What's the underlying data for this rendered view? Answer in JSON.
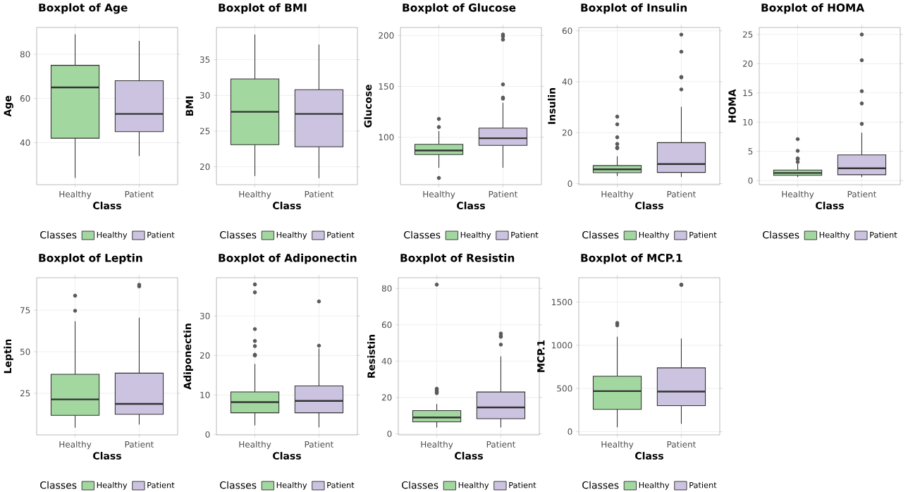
{
  "chart_data": [
    {
      "type": "box",
      "title": "Boxplot of Age",
      "xlabel": "Class",
      "ylabel": "Age",
      "legend_title": "Classes",
      "legend": "bottom",
      "grid": true,
      "categories": [
        "Healthy",
        "Patient"
      ],
      "ylim": [
        21,
        92.1
      ],
      "yticks": [
        40,
        60,
        80
      ],
      "series": [
        {
          "name": "Healthy",
          "color": "#a3d7a0",
          "boxes": [
            {
              "low": 24,
              "q1": 42,
              "median": 65,
              "q3": 75,
              "high": 89
            },
            null
          ]
        },
        {
          "name": "Patient",
          "color": "#cbc3df",
          "boxes": [
            null,
            {
              "low": 34,
              "q1": 45,
              "median": 53,
              "q3": 68,
              "high": 86
            }
          ]
        }
      ]
    },
    {
      "type": "box",
      "title": "Boxplot of BMI",
      "xlabel": "Class",
      "ylabel": "BMI",
      "legend_title": "Classes",
      "legend": "bottom",
      "grid": true,
      "categories": [
        "Healthy",
        "Patient"
      ],
      "ylim": [
        17.5,
        39.5
      ],
      "yticks": [
        20,
        25,
        30,
        35
      ],
      "series": [
        {
          "name": "Healthy",
          "color": "#a3d7a0",
          "boxes": [
            {
              "low": 18.7,
              "q1": 23.1,
              "median": 27.7,
              "q3": 32.3,
              "high": 38.5
            },
            null
          ]
        },
        {
          "name": "Patient",
          "color": "#cbc3df",
          "boxes": [
            null,
            {
              "low": 18.4,
              "q1": 22.8,
              "median": 27.4,
              "q3": 30.8,
              "high": 37.1
            }
          ]
        }
      ]
    },
    {
      "type": "box",
      "title": "Boxplot of Glucose",
      "xlabel": "Class",
      "ylabel": "Glucose",
      "legend_title": "Classes",
      "legend": "bottom",
      "grid": true,
      "categories": [
        "Healthy",
        "Patient"
      ],
      "ylim": [
        53.4,
        207.9
      ],
      "yticks": [
        100,
        150,
        200
      ],
      "series": [
        {
          "name": "Healthy",
          "color": "#a3d7a0",
          "boxes": [
            {
              "low": 70,
              "q1": 83,
              "median": 87,
              "q3": 93,
              "high": 106,
              "outliers": [
                118,
                110,
                60
              ]
            },
            null
          ]
        },
        {
          "name": "Patient",
          "color": "#cbc3df",
          "boxes": [
            null,
            {
              "low": 70,
              "q1": 92,
              "median": 99,
              "q3": 109,
              "high": 134,
              "outliers": [
                201,
                199,
                196,
                152,
                139,
                138
              ]
            }
          ]
        }
      ]
    },
    {
      "type": "box",
      "title": "Boxplot of Insulin",
      "xlabel": "Class",
      "ylabel": "Insulin",
      "legend_title": "Classes",
      "legend": "bottom",
      "grid": true,
      "categories": [
        "Healthy",
        "Patient"
      ],
      "ylim": [
        -0.4,
        61.3
      ],
      "yticks": [
        0,
        20,
        40,
        60
      ],
      "series": [
        {
          "name": "Healthy",
          "color": "#a3d7a0",
          "boxes": [
            {
              "low": 3.0,
              "q1": 4.3,
              "median": 5.6,
              "q3": 7.1,
              "high": 10.7,
              "outliers": [
                26.3,
                23.3,
                18.2,
                15.6,
                14.2,
                13.9
              ]
            },
            null
          ]
        },
        {
          "name": "Patient",
          "color": "#cbc3df",
          "boxes": [
            null,
            {
              "low": 2.6,
              "q1": 4.4,
              "median": 7.7,
              "q3": 16.1,
              "high": 30.2,
              "outliers": [
                58.5,
                51.8,
                41.9,
                41.7,
                37.0
              ]
            }
          ]
        }
      ]
    },
    {
      "type": "box",
      "title": "Boxplot of HOMA",
      "xlabel": "Class",
      "ylabel": "HOMA",
      "legend_title": "Classes",
      "legend": "bottom",
      "grid": true,
      "categories": [
        "Healthy",
        "Patient"
      ],
      "ylim": [
        -0.7,
        26.2
      ],
      "yticks": [
        0,
        5,
        10,
        15,
        20,
        25
      ],
      "series": [
        {
          "name": "Healthy",
          "color": "#a3d7a0",
          "boxes": [
            {
              "low": 0.6,
              "q1": 0.9,
              "median": 1.3,
              "q3": 1.8,
              "high": 2.9,
              "outliers": [
                7.1,
                5.1,
                3.8,
                3.7,
                3.2
              ]
            },
            null
          ]
        },
        {
          "name": "Patient",
          "color": "#cbc3df",
          "boxes": [
            null,
            {
              "low": 0.6,
              "q1": 1.0,
              "median": 2.1,
              "q3": 4.4,
              "high": 8.2,
              "outliers": [
                25.0,
                20.6,
                15.3,
                13.2,
                9.7
              ]
            }
          ]
        }
      ]
    },
    {
      "type": "box",
      "title": "Boxplot of Leptin",
      "xlabel": "Class",
      "ylabel": "Leptin",
      "legend_title": "Classes",
      "legend": "bottom",
      "grid": true,
      "categories": [
        "Healthy",
        "Patient"
      ],
      "ylim": [
        -0.1,
        94.6
      ],
      "yticks": [
        25,
        50,
        75
      ],
      "series": [
        {
          "name": "Healthy",
          "color": "#a3d7a0",
          "boxes": [
            {
              "low": 4.2,
              "q1": 11.7,
              "median": 21.3,
              "q3": 36.4,
              "high": 68.4,
              "outliers": [
                83.8,
                74.7
              ]
            },
            null
          ]
        },
        {
          "name": "Patient",
          "color": "#cbc3df",
          "boxes": [
            null,
            {
              "low": 6.2,
              "q1": 12.3,
              "median": 18.6,
              "q3": 37.1,
              "high": 70.5,
              "outliers": [
                90.4,
                89.4
              ]
            }
          ]
        }
      ]
    },
    {
      "type": "box",
      "title": "Boxplot of Adiponectin",
      "xlabel": "Class",
      "ylabel": "Adiponectin",
      "legend_title": "Classes",
      "legend": "bottom",
      "grid": true,
      "categories": [
        "Healthy",
        "Patient"
      ],
      "ylim": [
        -0.1,
        39.7
      ],
      "yticks": [
        0,
        10,
        20,
        30
      ],
      "series": [
        {
          "name": "Healthy",
          "color": "#a3d7a0",
          "boxes": [
            {
              "low": 2.3,
              "q1": 5.5,
              "median": 8.2,
              "q3": 10.8,
              "high": 17.9,
              "outliers": [
                38.0,
                36.0,
                26.7,
                23.7,
                22.4,
                20.2,
                20.0
              ]
            },
            null
          ]
        },
        {
          "name": "Patient",
          "color": "#cbc3df",
          "boxes": [
            null,
            {
              "low": 1.8,
              "q1": 5.5,
              "median": 8.5,
              "q3": 12.3,
              "high": 21.8,
              "outliers": [
                33.7,
                22.5
              ]
            }
          ]
        }
      ]
    },
    {
      "type": "box",
      "title": "Boxplot of Resistin",
      "xlabel": "Class",
      "ylabel": "Resistin",
      "legend_title": "Classes",
      "legend": "bottom",
      "grid": true,
      "categories": [
        "Healthy",
        "Patient"
      ],
      "ylim": [
        -0.6,
        85.9
      ],
      "yticks": [
        0,
        20,
        40,
        60,
        80
      ],
      "series": [
        {
          "name": "Healthy",
          "color": "#a3d7a0",
          "boxes": [
            {
              "low": 3.5,
              "q1": 6.6,
              "median": 9.0,
              "q3": 12.8,
              "high": 16.4,
              "outliers": [
                82.1,
                24.8,
                23.9,
                23.1,
                22.4
              ]
            },
            null
          ]
        },
        {
          "name": "Patient",
          "color": "#cbc3df",
          "boxes": [
            null,
            {
              "low": 3.5,
              "q1": 8.3,
              "median": 14.5,
              "q3": 23.0,
              "high": 42.6,
              "outliers": [
                55.2,
                53.8,
                53.4,
                49.1
              ]
            }
          ]
        }
      ]
    },
    {
      "type": "box",
      "title": "Boxplot of MCP.1",
      "xlabel": "Class",
      "ylabel": "MCP.1",
      "legend_title": "Classes",
      "legend": "bottom",
      "grid": true,
      "categories": [
        "Healthy",
        "Patient"
      ],
      "ylim": [
        -38,
        1782
      ],
      "yticks": [
        0,
        500,
        1000,
        1500
      ],
      "series": [
        {
          "name": "Healthy",
          "color": "#a3d7a0",
          "boxes": [
            {
              "low": 49,
              "q1": 258,
              "median": 469,
              "q3": 641,
              "high": 1098,
              "outliers": [
                1258,
                1231
              ]
            },
            null
          ]
        },
        {
          "name": "Patient",
          "color": "#cbc3df",
          "boxes": [
            null,
            {
              "low": 90,
              "q1": 301,
              "median": 464,
              "q3": 738,
              "high": 1077,
              "outliers": [
                1700,
                1700
              ]
            }
          ]
        }
      ]
    }
  ]
}
